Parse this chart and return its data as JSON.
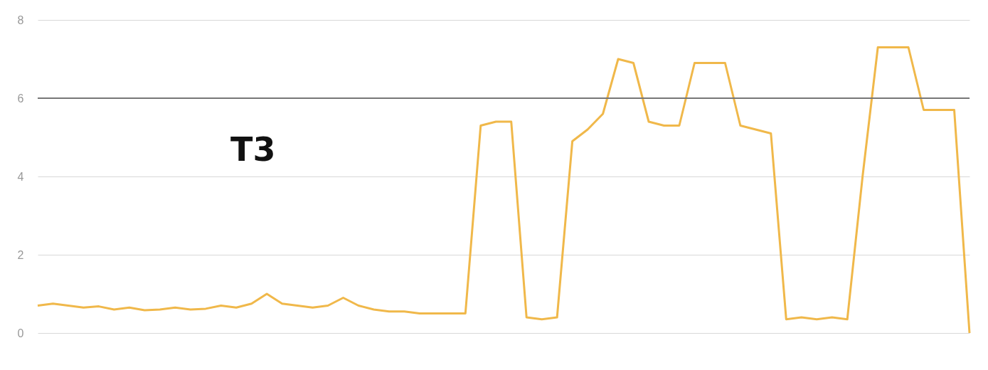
{
  "chart_data": {
    "type": "line",
    "title": "T3",
    "categories": [
      null,
      null,
      null,
      null,
      null,
      null,
      null,
      null,
      null,
      null,
      null,
      null,
      null,
      null,
      null,
      null,
      null,
      null,
      null,
      null,
      null,
      null,
      null,
      null,
      null,
      null,
      null,
      null,
      null,
      null,
      null,
      null,
      null,
      null,
      null,
      null,
      null,
      null,
      null,
      null,
      null,
      null,
      null,
      null,
      null,
      null,
      null,
      null,
      null,
      null,
      null,
      null,
      null,
      null,
      null,
      null,
      null,
      null,
      null,
      null,
      null,
      null
    ],
    "series": [
      {
        "color": "#f0b84a",
        "values": [
          0.7,
          0.75,
          0.7,
          0.65,
          0.68,
          0.6,
          0.65,
          0.58,
          0.6,
          0.65,
          0.6,
          0.62,
          0.7,
          0.65,
          0.75,
          1.0,
          0.75,
          0.7,
          0.65,
          0.7,
          0.9,
          0.7,
          0.6,
          0.55,
          0.55,
          0.5,
          0.5,
          0.5,
          0.5,
          5.3,
          5.4,
          5.4,
          0.4,
          0.35,
          0.4,
          4.9,
          5.2,
          5.6,
          7.0,
          6.9,
          5.4,
          5.3,
          5.3,
          6.9,
          6.9,
          6.9,
          5.3,
          5.2,
          5.1,
          0.35,
          0.4,
          0.35,
          0.4,
          0.35,
          4.0,
          7.3,
          7.3,
          7.3,
          5.7,
          5.7,
          5.7,
          0.0
        ]
      }
    ],
    "ylim": [
      0,
      8
    ],
    "yticks": [
      0,
      2,
      4,
      6,
      8
    ],
    "grid": "y",
    "marker": "none",
    "ref_lines": [
      {
        "axis": "y",
        "value": 6,
        "color": "#777777"
      }
    ]
  }
}
